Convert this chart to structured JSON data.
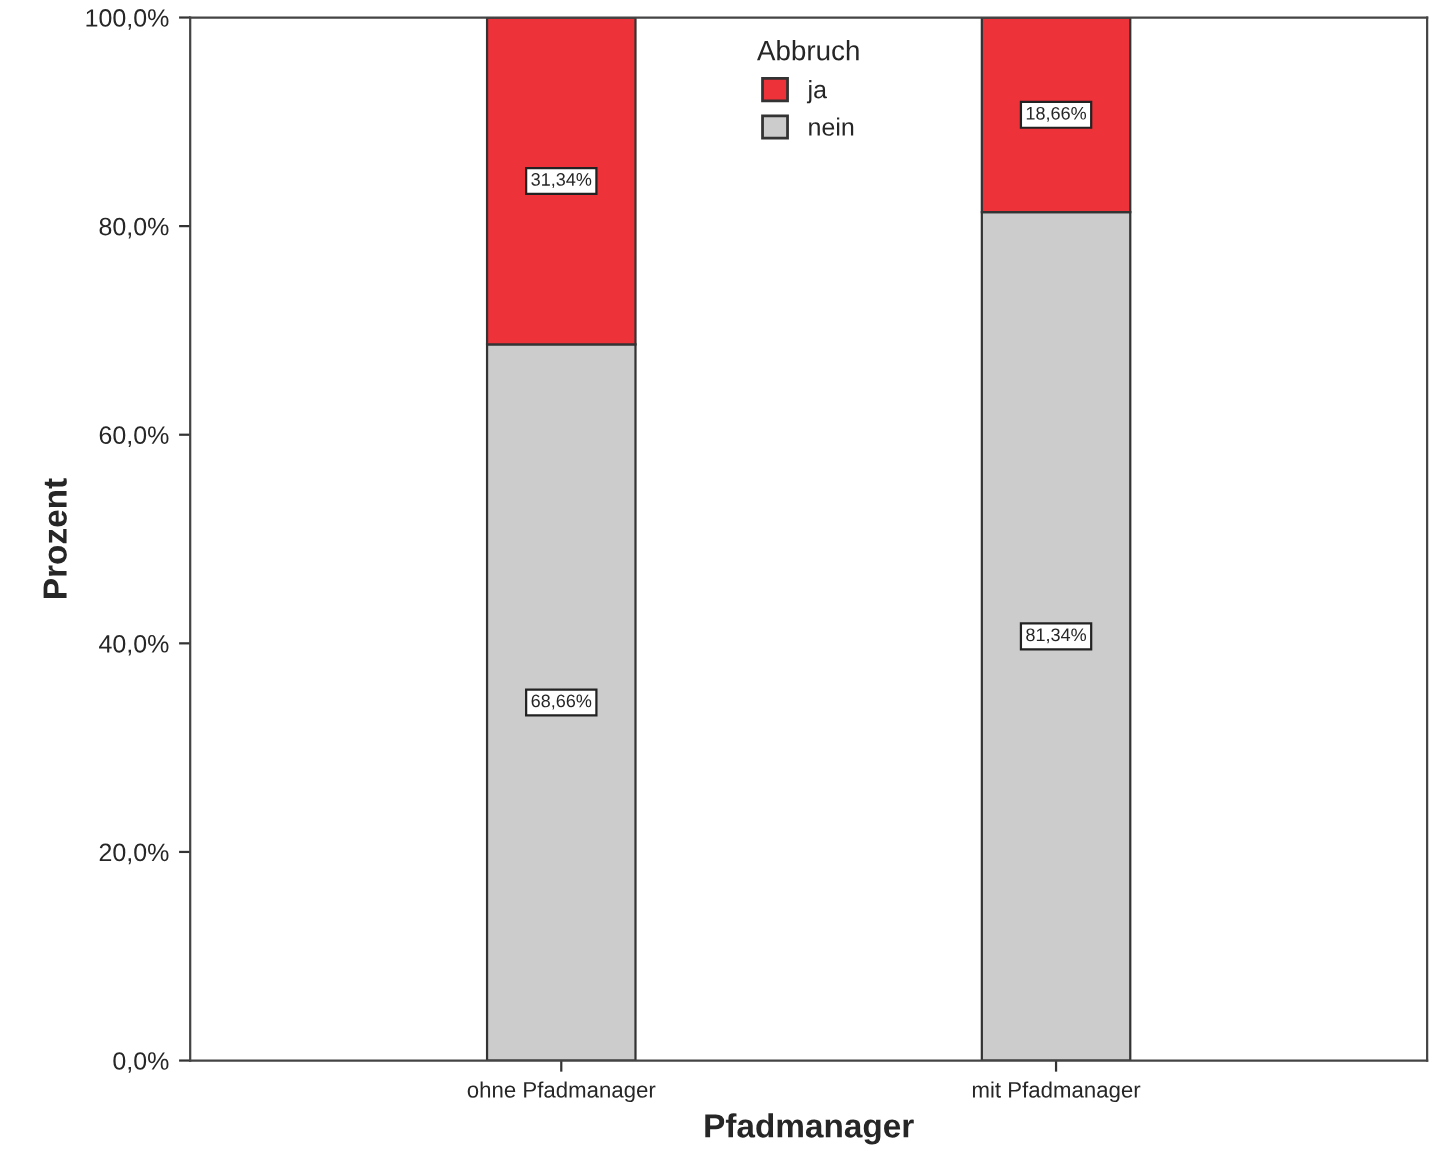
{
  "chart_data": {
    "type": "bar",
    "stacked": true,
    "xlabel": "Pfadmanager",
    "ylabel": "Prozent",
    "legend_title": "Abbruch",
    "legend": "top",
    "categories": [
      "ohne Pfadmanager",
      "mit Pfadmanager"
    ],
    "series": [
      {
        "name": "nein",
        "color": "#cccccc",
        "values": [
          68.66,
          81.34
        ],
        "value_labels": [
          "68,66%",
          "81,34%"
        ]
      },
      {
        "name": "ja",
        "color": "#ee3239",
        "values": [
          31.34,
          18.66
        ],
        "value_labels": [
          "31,34%",
          "18,66%"
        ]
      }
    ],
    "ylim": [
      0,
      100
    ],
    "yticks": [
      {
        "value": 0,
        "label": "0,0%"
      },
      {
        "value": 20,
        "label": "20,0%"
      },
      {
        "value": 40,
        "label": "40,0%"
      },
      {
        "value": 60,
        "label": "60,0%"
      },
      {
        "value": 80,
        "label": "80,0%"
      },
      {
        "value": 100,
        "label": "100,0%"
      }
    ],
    "grid": false
  }
}
